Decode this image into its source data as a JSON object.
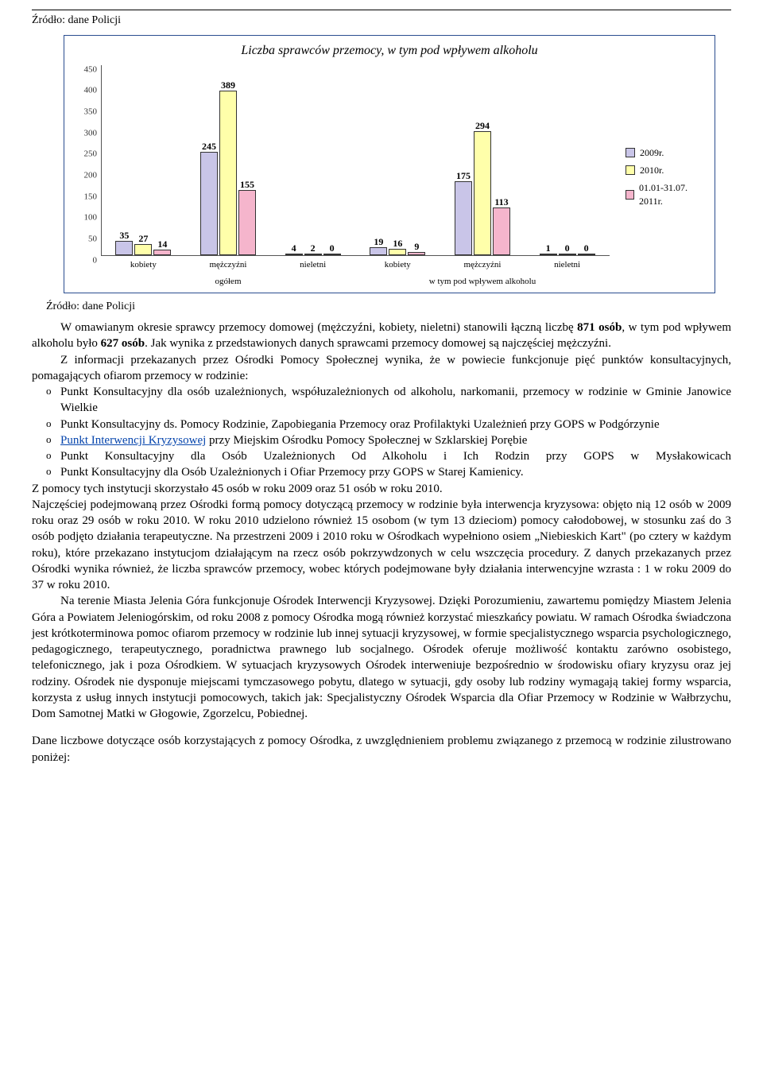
{
  "source": "Źródło: dane Policji",
  "chart": {
    "title": "Liczba sprawców przemocy, w tym pod wpływem alkoholu",
    "type": "bar",
    "ymax": 450,
    "ytick_step": 50,
    "series_colors": [
      "#c9c5e8",
      "#ffffaa",
      "#f5b5cc"
    ],
    "border_color": "#2a4d8f",
    "legend": [
      "2009r.",
      "2010r.",
      "01.01-31.07. 2011r."
    ],
    "groups": [
      {
        "label": "kobiety",
        "values": [
          35,
          27,
          14
        ]
      },
      {
        "label": "mężczyźni",
        "values": [
          245,
          389,
          155
        ]
      },
      {
        "label": "nieletni",
        "values": [
          4,
          2,
          0
        ]
      },
      {
        "label": "kobiety",
        "values": [
          19,
          16,
          9
        ]
      },
      {
        "label": "mężczyźni",
        "values": [
          175,
          294,
          113
        ]
      },
      {
        "label": "nieletni",
        "values": [
          1,
          0,
          0
        ]
      }
    ],
    "super_labels": [
      "ogółem",
      "w tym pod wpływem alkoholu"
    ]
  },
  "para1_a": "W omawianym okresie sprawcy przemocy domowej (mężczyźni, kobiety, nieletni) stanowili łączną liczbę ",
  "para1_b": "871 osób",
  "para1_c": ", w tym pod wpływem alkoholu było ",
  "para1_d": "627 osób",
  "para1_e": ". Jak wynika z przedstawionych danych sprawcami przemocy domowej są najczęściej mężczyźni.",
  "para2": "Z informacji przekazanych przez Ośrodki Pomocy Społecznej wynika, że w powiecie funkcjonuje pięć punktów konsultacyjnych, pomagających ofiarom przemocy w rodzinie:",
  "bullets": [
    "Punkt Konsultacyjny dla osób uzależnionych, współuzależnionych od alkoholu, narkomanii, przemocy w rodzinie w Gminie Janowice Wielkie",
    "Punkt Konsultacyjny ds. Pomocy Rodzinie, Zapobiegania Przemocy oraz Profilaktyki Uzależnień przy GOPS w Podgórzynie",
    " przy Miejskim Ośrodku Pomocy Społecznej w Szklarskiej Porębie",
    "Punkt Konsultacyjny dla Osób Uzależnionych Od Alkoholu i Ich Rodzin przy GOPS w Mysłakowicach",
    "Punkt Konsultacyjny dla Osób Uzależnionych i Ofiar Przemocy  przy GOPS w Starej Kamienicy."
  ],
  "bullet3_link": "Punkt Interwencji Kryzysowej",
  "para3": "Z pomocy tych instytucji skorzystało 45 osób w roku 2009 oraz 51 osób w roku 2010.",
  "para4": "Najczęściej podejmowaną przez Ośrodki formą pomocy dotyczącą przemocy w rodzinie była interwencja kryzysowa: objęto nią 12 osób w 2009 roku oraz 29 osób w roku 2010.  W roku 2010 udzielono również 15 osobom (w tym 13 dzieciom) pomocy całodobowej, w stosunku zaś do 3 osób podjęto działania terapeutyczne. Na przestrzeni 2009 i 2010 roku w Ośrodkach wypełniono osiem „Niebieskich Kart\" (po cztery w każdym roku), które przekazano instytucjom działającym na rzecz osób pokrzywdzonych w celu wszczęcia procedury. Z danych przekazanych przez Ośrodki wynika również, że liczba sprawców przemocy, wobec których podejmowane były działania interwencyjne wzrasta : 1 w roku 2009 do 37 w roku 2010.",
  "para5": "Na terenie Miasta Jelenia Góra funkcjonuje Ośrodek Interwencji Kryzysowej. Dzięki Porozumieniu, zawartemu pomiędzy Miastem Jelenia Góra a Powiatem Jeleniogórskim, od roku 2008 z pomocy Ośrodka mogą również korzystać mieszkańcy powiatu. W ramach Ośrodka świadczona jest krótkoterminowa pomoc ofiarom przemocy w rodzinie lub innej sytuacji kryzysowej, w formie specjalistycznego wsparcia psychologicznego, pedagogicznego, terapeutycznego, poradnictwa prawnego lub socjalnego. Ośrodek oferuje możliwość kontaktu zarówno osobistego, telefonicznego, jak i poza Ośrodkiem. W sytuacjach kryzysowych Ośrodek interweniuje bezpośrednio w środowisku ofiary kryzysu oraz jej rodziny. Ośrodek nie dysponuje miejscami tymczasowego pobytu, dlatego w sytuacji, gdy osoby lub rodziny wymagają takiej formy wsparcia, korzysta z usług innych instytucji pomocowych, takich jak: Specjalistyczny Ośrodek Wsparcia dla Ofiar Przemocy w Rodzinie w Wałbrzychu, Dom Samotnej Matki w Głogowie, Zgorzelcu, Pobiednej.",
  "para6": "Dane liczbowe dotyczące osób korzystających z pomocy Ośrodka, z uwzględnieniem problemu związanego z przemocą w rodzinie zilustrowano poniżej:"
}
